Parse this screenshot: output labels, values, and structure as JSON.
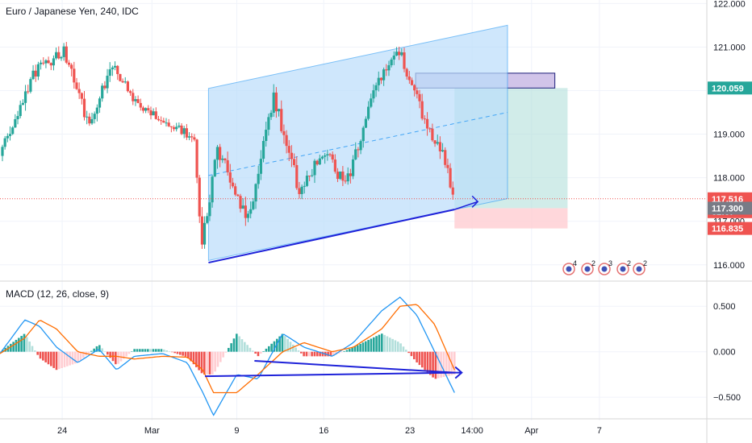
{
  "chart_data": {
    "type": "candlestick",
    "title": "Euro / Japanese Yen, 240, IDC",
    "colors": {
      "up": "#26a69a",
      "down": "#ef5350",
      "grid": "#f0f3fa",
      "channel_fill": "#bbdefb",
      "channel_line": "#42a5f5",
      "drawing": "#1e22d9",
      "macd_line": "#2196f3",
      "signal_line": "#ff6d00",
      "target": "#b2dfdb",
      "stop": "#ffcdd2",
      "box": "#d1c4e9"
    },
    "price_axis": {
      "ylim": [
        115.7,
        122.08
      ],
      "ticks": [
        "116.000",
        "117.000",
        "118.000",
        "119.000",
        "120.000",
        "121.000",
        "122.000"
      ]
    },
    "time_axis": {
      "labels": [
        "24",
        "Mar",
        "9",
        "16",
        "23",
        "14:00",
        "Apr",
        "7"
      ]
    },
    "price_tags": [
      {
        "label": "120.059",
        "value": 120.059,
        "color": "#26a69a"
      },
      {
        "label": "117.516",
        "value": 117.516,
        "color": "#ef5350"
      },
      {
        "label": "32:37",
        "value": 117.22,
        "color": "#ef5350"
      },
      {
        "label": "117.300",
        "value": 117.3,
        "color": "#787b86"
      },
      {
        "label": "116.835",
        "value": 116.835,
        "color": "#ef5350"
      }
    ],
    "candles": {
      "segments": [
        {
          "bars": 13,
          "from": 118.5,
          "to": 120.4,
          "vol": 0.3,
          "seed": 3
        },
        {
          "bars": 12,
          "from": 120.4,
          "to": 120.9,
          "vol": 0.25,
          "seed": 7
        },
        {
          "bars": 10,
          "from": 120.9,
          "to": 119.2,
          "vol": 0.3,
          "seed": 11
        },
        {
          "bars": 9,
          "from": 119.2,
          "to": 120.6,
          "vol": 0.3,
          "seed": 13
        },
        {
          "bars": 10,
          "from": 120.6,
          "to": 119.7,
          "vol": 0.25,
          "seed": 17
        },
        {
          "bars": 22,
          "from": 119.7,
          "to": 118.9,
          "vol": 0.2,
          "seed": 19
        },
        {
          "bars": 3,
          "from": 118.9,
          "to": 116.5,
          "vol": 0.4,
          "seed": 23
        },
        {
          "bars": 6,
          "from": 116.5,
          "to": 118.7,
          "vol": 0.35,
          "seed": 29
        },
        {
          "bars": 12,
          "from": 118.7,
          "to": 117.0,
          "vol": 0.35,
          "seed": 31
        },
        {
          "bars": 10,
          "from": 117.0,
          "to": 119.9,
          "vol": 0.35,
          "seed": 37
        },
        {
          "bars": 10,
          "from": 119.9,
          "to": 117.7,
          "vol": 0.35,
          "seed": 41
        },
        {
          "bars": 10,
          "from": 117.7,
          "to": 118.6,
          "vol": 0.3,
          "seed": 43
        },
        {
          "bars": 8,
          "from": 118.6,
          "to": 117.8,
          "vol": 0.3,
          "seed": 47
        },
        {
          "bars": 12,
          "from": 117.8,
          "to": 120.1,
          "vol": 0.3,
          "seed": 53
        },
        {
          "bars": 9,
          "from": 120.1,
          "to": 120.9,
          "vol": 0.25,
          "seed": 59
        },
        {
          "bars": 10,
          "from": 120.9,
          "to": 119.3,
          "vol": 0.3,
          "seed": 61
        },
        {
          "bars": 8,
          "from": 119.3,
          "to": 118.4,
          "vol": 0.3,
          "seed": 67
        },
        {
          "bars": 3,
          "from": 118.4,
          "to": 117.5,
          "vol": 0.25,
          "seed": 71
        }
      ]
    },
    "channel": [
      {
        "t": 0.295,
        "p": 116.1
      },
      {
        "t": 0.295,
        "p": 120.05
      },
      {
        "t": 0.718,
        "p": 121.5
      },
      {
        "t": 0.718,
        "p": 117.52
      }
    ],
    "channel_midline": [
      {
        "t": 0.295,
        "p": 118.05
      },
      {
        "t": 0.718,
        "p": 119.5
      }
    ],
    "trendline": [
      {
        "t": 0.295,
        "p": 116.05
      },
      {
        "t": 0.643,
        "p": 117.27
      }
    ],
    "trend_arrow": [
      {
        "t": 0.643,
        "p": 117.27
      },
      {
        "t": 0.676,
        "p": 117.45
      }
    ],
    "position": {
      "t_start": 0.643,
      "t_end": 0.803,
      "entry": 117.3,
      "target": 120.059,
      "stop": 116.835
    },
    "supply_box": {
      "t_start": 0.588,
      "t_end": 0.785,
      "top": 120.4,
      "bottom": 120.059
    },
    "macd": {
      "label": "MACD (12, 26, close, 9)",
      "ylim": [
        -0.72,
        0.75
      ],
      "ticks": [
        "0.500",
        "0.000",
        "−0.500"
      ],
      "tick_values": [
        0.5,
        0.0,
        -0.5
      ],
      "points": [
        {
          "t": 0.0,
          "macd": -0.02,
          "signal": -0.02
        },
        {
          "t": 0.035,
          "macd": 0.35,
          "signal": 0.15
        },
        {
          "t": 0.056,
          "macd": 0.28,
          "signal": 0.35
        },
        {
          "t": 0.08,
          "macd": 0.05,
          "signal": 0.25
        },
        {
          "t": 0.11,
          "macd": -0.12,
          "signal": 0.0
        },
        {
          "t": 0.14,
          "macd": 0.03,
          "signal": -0.05
        },
        {
          "t": 0.165,
          "macd": -0.2,
          "signal": -0.05
        },
        {
          "t": 0.19,
          "macd": -0.05,
          "signal": -0.08
        },
        {
          "t": 0.23,
          "macd": -0.02,
          "signal": -0.05
        },
        {
          "t": 0.265,
          "macd": -0.12,
          "signal": -0.06
        },
        {
          "t": 0.287,
          "macd": -0.45,
          "signal": -0.2
        },
        {
          "t": 0.302,
          "macd": -0.7,
          "signal": -0.45
        },
        {
          "t": 0.335,
          "macd": -0.25,
          "signal": -0.45
        },
        {
          "t": 0.365,
          "macd": -0.3,
          "signal": -0.25
        },
        {
          "t": 0.4,
          "macd": 0.2,
          "signal": 0.0
        },
        {
          "t": 0.43,
          "macd": 0.05,
          "signal": 0.1
        },
        {
          "t": 0.47,
          "macd": -0.05,
          "signal": 0.0
        },
        {
          "t": 0.5,
          "macd": 0.1,
          "signal": 0.05
        },
        {
          "t": 0.54,
          "macd": 0.45,
          "signal": 0.25
        },
        {
          "t": 0.566,
          "macd": 0.6,
          "signal": 0.5
        },
        {
          "t": 0.59,
          "macd": 0.4,
          "signal": 0.52
        },
        {
          "t": 0.615,
          "macd": 0.0,
          "signal": 0.3
        },
        {
          "t": 0.643,
          "macd": -0.45,
          "signal": -0.2
        }
      ]
    },
    "macd_lines": [
      [
        {
          "t": 0.29,
          "v": -0.27
        },
        {
          "t": 0.643,
          "v": -0.23
        }
      ],
      [
        {
          "t": 0.36,
          "v": -0.1
        },
        {
          "t": 0.643,
          "v": -0.23
        }
      ]
    ],
    "badges": [
      "4",
      "2",
      "3",
      "2",
      "2"
    ]
  }
}
